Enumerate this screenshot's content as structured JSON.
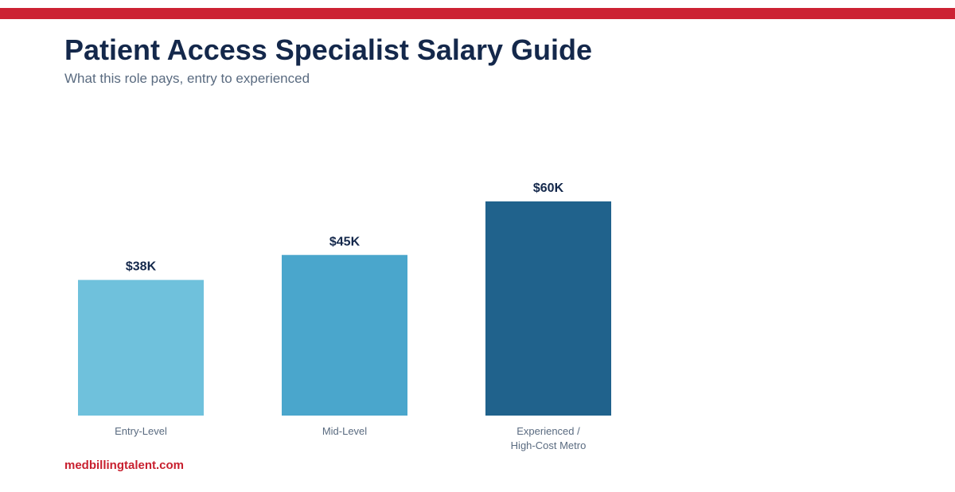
{
  "header": {
    "title": "Patient Access Specialist Salary Guide",
    "subtitle": "What this role pays, entry to experienced"
  },
  "footer": {
    "source": "medbillingtalent.com"
  },
  "colors": {
    "accent_bar": "#cc2233",
    "title": "#14284b",
    "subtitle": "#5a6b80",
    "source": "#c8202f"
  },
  "chart_data": {
    "type": "bar",
    "title": "",
    "xlabel": "",
    "ylabel": "",
    "ylim": [
      0,
      60
    ],
    "grid": false,
    "categories": [
      [
        "Entry-Level"
      ],
      [
        "Mid-Level"
      ],
      [
        "Experienced /",
        "High-Cost Metro"
      ]
    ],
    "values": [
      38,
      45,
      60
    ],
    "value_labels": [
      "$38K",
      "$45K",
      "$60K"
    ],
    "colors": [
      "#6fc1dc",
      "#4aa6cc",
      "#20628c"
    ]
  }
}
